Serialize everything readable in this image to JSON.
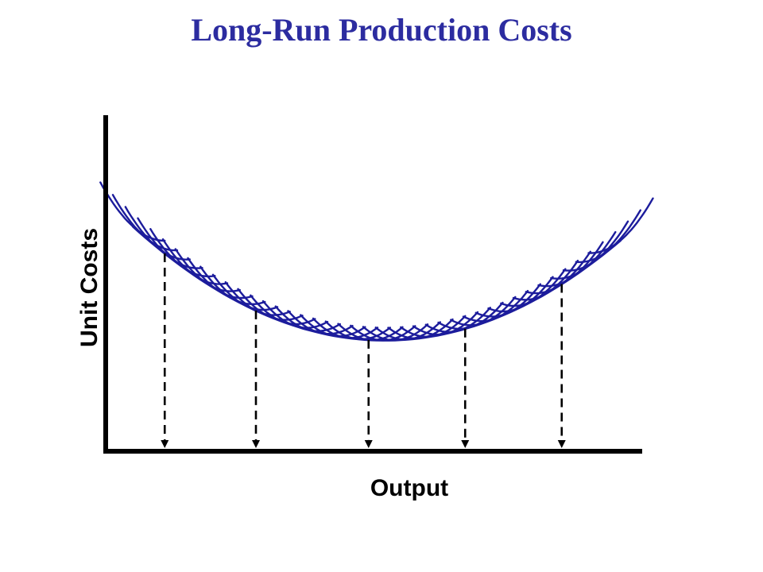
{
  "chart_data": {
    "type": "line",
    "title": "Long-Run Production Costs",
    "xlabel": "Output",
    "ylabel": "Unit Costs",
    "grid": false,
    "legend": "none",
    "xlim": [
      0,
      100
    ],
    "ylim": [
      0,
      100
    ],
    "long_run_curve": {
      "min_x": 52,
      "min_y": 33,
      "left_y_at_x5": 67
    },
    "short_run_curves": {
      "count": 40,
      "x_start": 5,
      "x_end": 96
    },
    "marked_outputs": [
      11,
      28,
      49,
      67,
      85
    ]
  },
  "colors": {
    "curve": "#1c1c9c",
    "axis": "#000000",
    "dashes": "#000000",
    "title": "#2c2ca0"
  }
}
